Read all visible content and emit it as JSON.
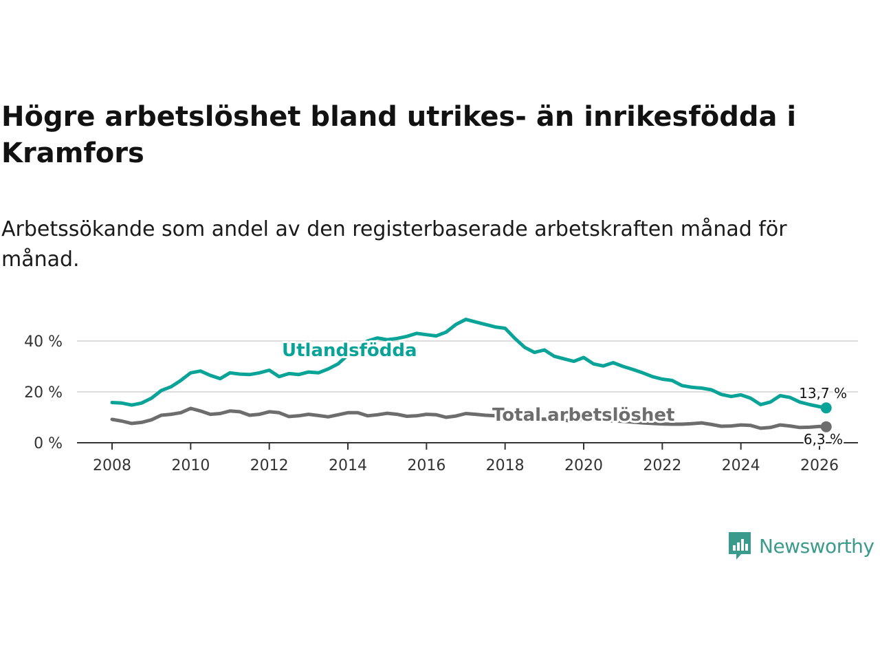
{
  "title": "Högre arbetslöshet bland utrikes- än inrikesfödda i Kramfors",
  "subtitle": "Arbetssökande som andel av den registerbaserade arbetskraften månad för månad.",
  "brand": {
    "name": "Newsworthy",
    "color": "#3a9a8c",
    "icon": "bar-chart-icon"
  },
  "chart_data": {
    "type": "line",
    "xlim": [
      2008,
      2026
    ],
    "ylim": [
      0,
      50
    ],
    "x_ticks": [
      2008,
      2010,
      2012,
      2014,
      2016,
      2018,
      2020,
      2022,
      2024,
      2026
    ],
    "x_tick_labels": [
      "2008",
      "2010",
      "2012",
      "2014",
      "2016",
      "2018",
      "2020",
      "2022",
      "2024",
      "2026"
    ],
    "y_ticks": [
      0,
      20,
      40
    ],
    "y_tick_labels": [
      "0 %",
      "20 %",
      "40 %"
    ],
    "gridlines": true,
    "series": [
      {
        "name": "Utlandsfödda",
        "color": "#0aa398",
        "end_label": "13,7 %",
        "points": [
          [
            2008.0,
            15.8
          ],
          [
            2008.25,
            15.6
          ],
          [
            2008.5,
            14.8
          ],
          [
            2008.75,
            15.6
          ],
          [
            2009.0,
            17.5
          ],
          [
            2009.25,
            20.5
          ],
          [
            2009.5,
            22.0
          ],
          [
            2009.75,
            24.5
          ],
          [
            2010.0,
            27.5
          ],
          [
            2010.25,
            28.2
          ],
          [
            2010.5,
            26.5
          ],
          [
            2010.75,
            25.2
          ],
          [
            2011.0,
            27.5
          ],
          [
            2011.25,
            27.0
          ],
          [
            2011.5,
            26.8
          ],
          [
            2011.75,
            27.5
          ],
          [
            2012.0,
            28.5
          ],
          [
            2012.25,
            26.0
          ],
          [
            2012.5,
            27.2
          ],
          [
            2012.75,
            26.8
          ],
          [
            2013.0,
            27.8
          ],
          [
            2013.25,
            27.5
          ],
          [
            2013.5,
            29.0
          ],
          [
            2013.75,
            31.0
          ],
          [
            2014.0,
            34.5
          ],
          [
            2014.25,
            37.5
          ],
          [
            2014.5,
            40.0
          ],
          [
            2014.75,
            41.2
          ],
          [
            2015.0,
            40.5
          ],
          [
            2015.25,
            41.0
          ],
          [
            2015.5,
            41.8
          ],
          [
            2015.75,
            43.0
          ],
          [
            2016.0,
            42.5
          ],
          [
            2016.25,
            42.0
          ],
          [
            2016.5,
            43.5
          ],
          [
            2016.75,
            46.5
          ],
          [
            2017.0,
            48.5
          ],
          [
            2017.25,
            47.5
          ],
          [
            2017.5,
            46.5
          ],
          [
            2017.75,
            45.5
          ],
          [
            2018.0,
            45.0
          ],
          [
            2018.25,
            41.0
          ],
          [
            2018.5,
            37.5
          ],
          [
            2018.75,
            35.5
          ],
          [
            2019.0,
            36.5
          ],
          [
            2019.25,
            34.0
          ],
          [
            2019.5,
            33.0
          ],
          [
            2019.75,
            32.0
          ],
          [
            2020.0,
            33.5
          ],
          [
            2020.25,
            31.0
          ],
          [
            2020.5,
            30.2
          ],
          [
            2020.75,
            31.5
          ],
          [
            2021.0,
            30.0
          ],
          [
            2021.25,
            28.8
          ],
          [
            2021.5,
            27.5
          ],
          [
            2021.75,
            26.0
          ],
          [
            2022.0,
            25.0
          ],
          [
            2022.25,
            24.5
          ],
          [
            2022.5,
            22.5
          ],
          [
            2022.75,
            21.8
          ],
          [
            2023.0,
            21.5
          ],
          [
            2023.25,
            20.8
          ],
          [
            2023.5,
            19.0
          ],
          [
            2023.75,
            18.2
          ],
          [
            2024.0,
            18.8
          ],
          [
            2024.25,
            17.5
          ],
          [
            2024.5,
            15.0
          ],
          [
            2024.75,
            16.0
          ],
          [
            2025.0,
            18.5
          ],
          [
            2025.25,
            17.8
          ],
          [
            2025.5,
            16.0
          ],
          [
            2025.75,
            15.0
          ],
          [
            2026.0,
            14.2
          ],
          [
            2026.17,
            13.7
          ]
        ]
      },
      {
        "name": "Total arbetslöshet",
        "color": "#6d6d6d",
        "end_label": "6,3 %",
        "points": [
          [
            2008.0,
            9.2
          ],
          [
            2008.25,
            8.5
          ],
          [
            2008.5,
            7.6
          ],
          [
            2008.75,
            8.0
          ],
          [
            2009.0,
            9.0
          ],
          [
            2009.25,
            10.8
          ],
          [
            2009.5,
            11.2
          ],
          [
            2009.75,
            11.8
          ],
          [
            2010.0,
            13.5
          ],
          [
            2010.25,
            12.5
          ],
          [
            2010.5,
            11.2
          ],
          [
            2010.75,
            11.5
          ],
          [
            2011.0,
            12.5
          ],
          [
            2011.25,
            12.2
          ],
          [
            2011.5,
            10.8
          ],
          [
            2011.75,
            11.2
          ],
          [
            2012.0,
            12.2
          ],
          [
            2012.25,
            11.8
          ],
          [
            2012.5,
            10.3
          ],
          [
            2012.75,
            10.6
          ],
          [
            2013.0,
            11.2
          ],
          [
            2013.25,
            10.7
          ],
          [
            2013.5,
            10.2
          ],
          [
            2013.75,
            11.0
          ],
          [
            2014.0,
            11.8
          ],
          [
            2014.25,
            11.8
          ],
          [
            2014.5,
            10.6
          ],
          [
            2014.75,
            11.0
          ],
          [
            2015.0,
            11.6
          ],
          [
            2015.25,
            11.2
          ],
          [
            2015.5,
            10.4
          ],
          [
            2015.75,
            10.6
          ],
          [
            2016.0,
            11.2
          ],
          [
            2016.25,
            11.0
          ],
          [
            2016.5,
            10.0
          ],
          [
            2016.75,
            10.5
          ],
          [
            2017.0,
            11.5
          ],
          [
            2017.25,
            11.2
          ],
          [
            2017.5,
            10.8
          ],
          [
            2017.75,
            10.6
          ],
          [
            2018.0,
            10.2
          ],
          [
            2018.25,
            9.8
          ],
          [
            2018.5,
            9.5
          ],
          [
            2018.75,
            9.2
          ],
          [
            2019.0,
            9.3
          ],
          [
            2019.25,
            9.0
          ],
          [
            2019.5,
            8.8
          ],
          [
            2019.75,
            8.6
          ],
          [
            2020.0,
            9.5
          ],
          [
            2020.25,
            9.2
          ],
          [
            2020.5,
            8.8
          ],
          [
            2020.75,
            8.6
          ],
          [
            2021.0,
            8.4
          ],
          [
            2021.25,
            8.1
          ],
          [
            2021.5,
            7.8
          ],
          [
            2021.75,
            7.6
          ],
          [
            2022.0,
            7.4
          ],
          [
            2022.25,
            7.3
          ],
          [
            2022.5,
            7.3
          ],
          [
            2022.75,
            7.5
          ],
          [
            2023.0,
            7.8
          ],
          [
            2023.25,
            7.2
          ],
          [
            2023.5,
            6.5
          ],
          [
            2023.75,
            6.6
          ],
          [
            2024.0,
            7.0
          ],
          [
            2024.25,
            6.8
          ],
          [
            2024.5,
            5.7
          ],
          [
            2024.75,
            6.0
          ],
          [
            2025.0,
            7.0
          ],
          [
            2025.25,
            6.6
          ],
          [
            2025.5,
            6.0
          ],
          [
            2025.75,
            6.1
          ],
          [
            2026.0,
            6.4
          ],
          [
            2026.17,
            6.3
          ]
        ]
      }
    ]
  }
}
